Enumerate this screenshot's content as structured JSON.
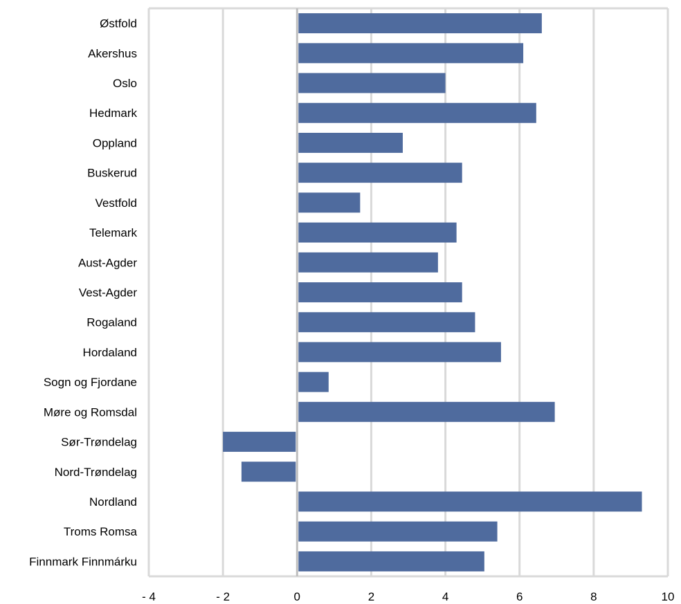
{
  "chart_data": {
    "type": "bar",
    "orientation": "horizontal",
    "categories": [
      "Østfold",
      "Akershus",
      "Oslo",
      "Hedmark",
      "Oppland",
      "Buskerud",
      "Vestfold",
      "Telemark",
      "Aust-Agder",
      "Vest-Agder",
      "Rogaland",
      "Hordaland",
      "Sogn og Fjordane",
      "Møre og Romsdal",
      "Sør-Trøndelag",
      "Nord-Trøndelag",
      "Nordland",
      "Troms Romsa",
      "Finnmark Finnmárku"
    ],
    "values": [
      6.6,
      6.1,
      4.0,
      6.45,
      2.85,
      4.45,
      1.7,
      4.3,
      3.8,
      4.45,
      4.8,
      5.5,
      0.85,
      6.95,
      -2.0,
      -1.5,
      9.3,
      5.4,
      5.05
    ],
    "xlim": [
      -4,
      10
    ],
    "xticks": [
      -4,
      -2,
      0,
      2,
      4,
      6,
      8,
      10
    ],
    "xtick_labels": [
      "- 4",
      "- 2",
      "0",
      "2",
      "4",
      "6",
      "8",
      "10"
    ],
    "title": "",
    "xlabel": "",
    "ylabel": "",
    "grid": true,
    "legend": "none",
    "bar_color": "#4f6b9e",
    "grid_color": "#d9d9d9",
    "zero_line_color": "#bfbfbf"
  }
}
